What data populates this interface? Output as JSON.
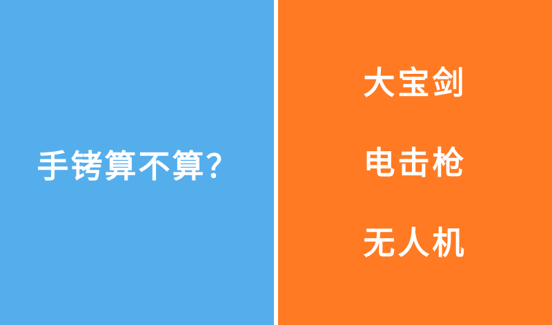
{
  "colors": {
    "left_bg": "#55AEEC",
    "right_bg": "#FF7A22",
    "divider": "#FFFFFF",
    "text": "#FFFFFF"
  },
  "left": {
    "question": "手铐算不算？"
  },
  "right": {
    "items": [
      "大宝剑",
      "电击枪",
      "无人机"
    ]
  }
}
